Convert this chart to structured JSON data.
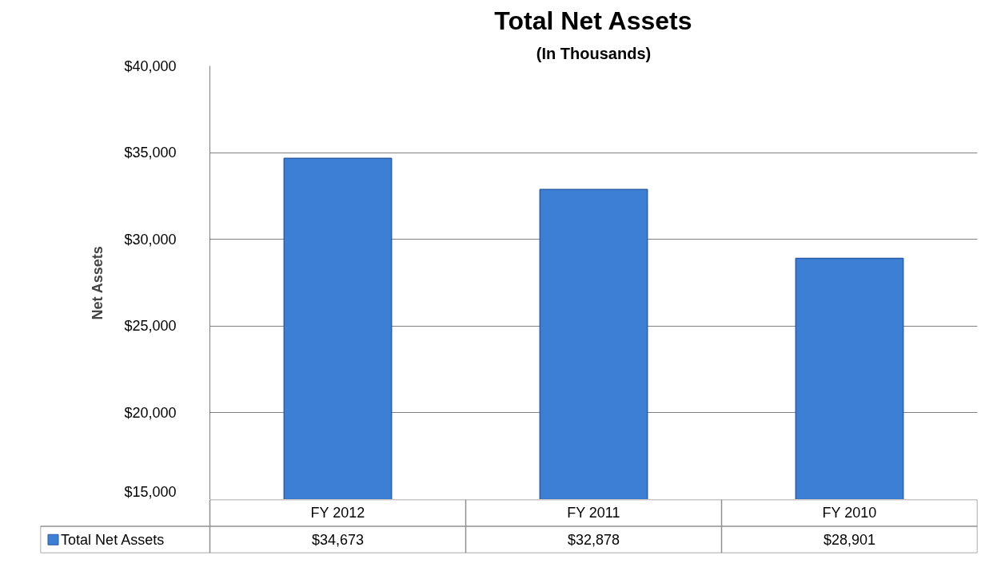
{
  "chart_data": {
    "type": "bar",
    "title": "Total Net Assets",
    "subtitle": "(In Thousands)",
    "ylabel": "Net Assets",
    "categories": [
      "FY 2012",
      "FY 2011",
      "FY 2010"
    ],
    "series": [
      {
        "name": "Total Net Assets",
        "color": "#3c7fd4",
        "values": [
          34673,
          32878,
          28901
        ],
        "value_labels": [
          "$34,673",
          "$32,878",
          "$28,901"
        ]
      }
    ],
    "ylim": [
      15000,
      40000
    ],
    "yticks": [
      {
        "value": 15000,
        "label": "$15,000"
      },
      {
        "value": 20000,
        "label": "$20,000"
      },
      {
        "value": 25000,
        "label": "$25,000"
      },
      {
        "value": 30000,
        "label": "$30,000"
      },
      {
        "value": 35000,
        "label": "$35,000"
      },
      {
        "value": 40000,
        "label": "$40,000"
      }
    ],
    "grid": "y",
    "legend": "bottom"
  }
}
